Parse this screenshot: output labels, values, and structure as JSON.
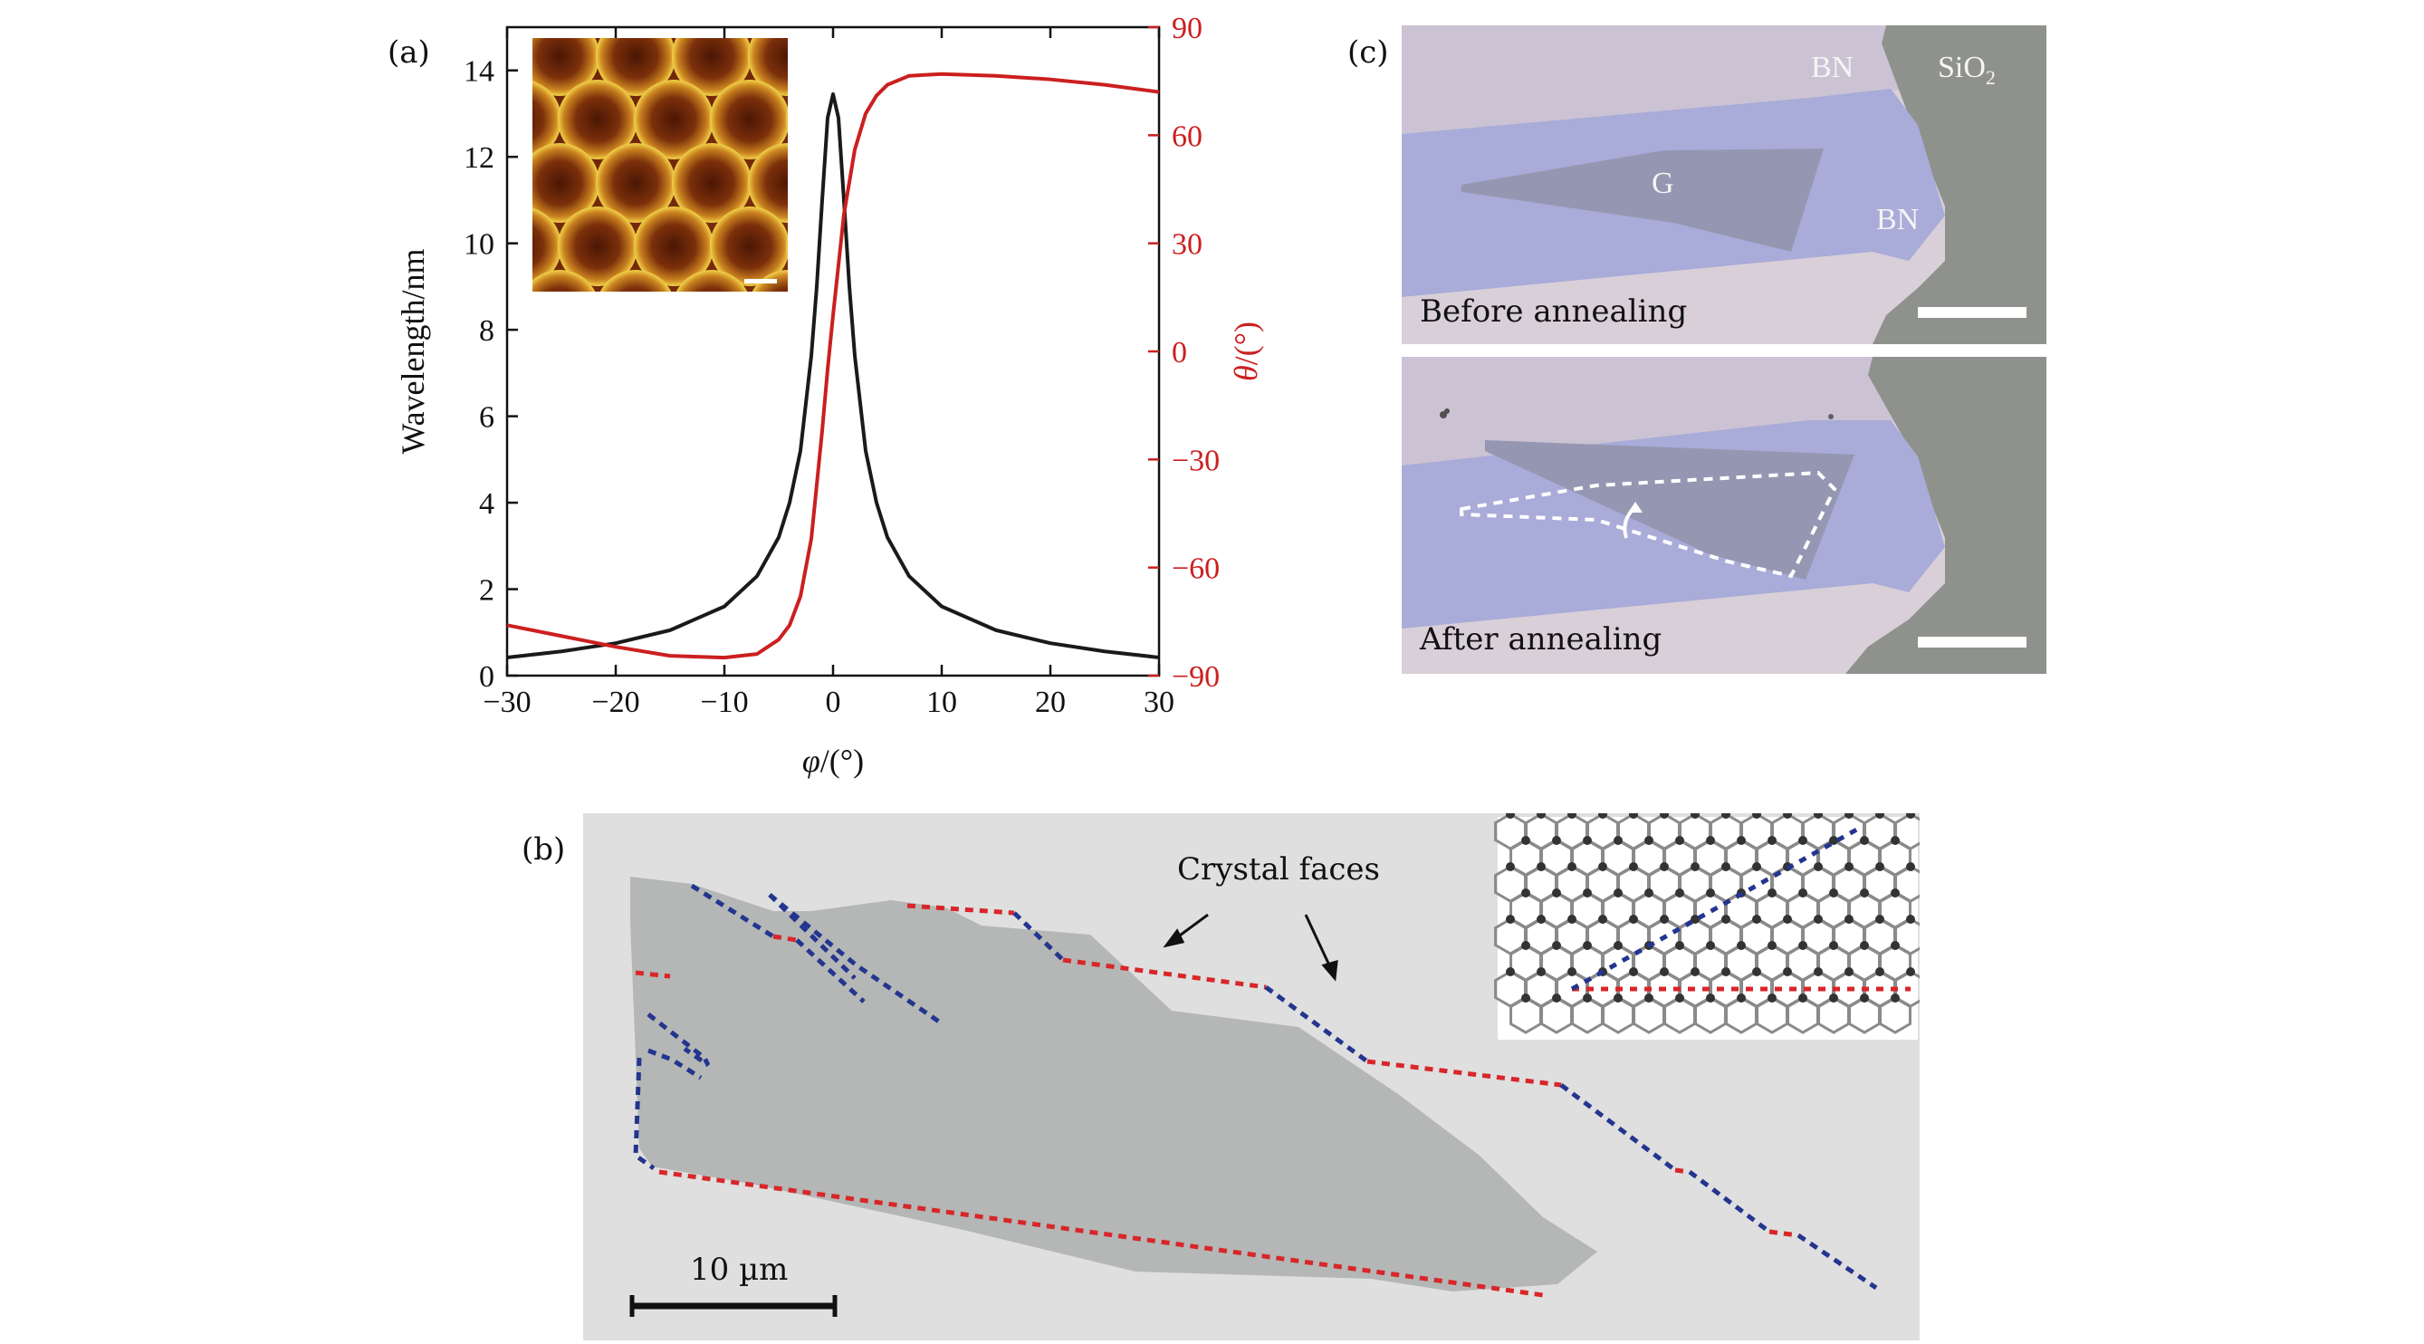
{
  "figure": {
    "panel_a_label": "(a)",
    "panel_b_label": "(b)",
    "panel_c_label": "(c)"
  },
  "chart_data": {
    "type": "line",
    "x": {
      "label_symbol": "φ",
      "label_rest": "/(°)",
      "lim": [
        -30,
        30
      ],
      "ticks": [
        "−30",
        "−20",
        "−10",
        "0",
        "10",
        "20",
        "30"
      ]
    },
    "y_left": {
      "label": "Wavelength/nm",
      "lim": [
        0,
        15
      ],
      "ticks": [
        "0",
        "2",
        "4",
        "6",
        "8",
        "10",
        "12",
        "14"
      ]
    },
    "y_right": {
      "label_symbol": "θ",
      "label_rest": "/(°)",
      "lim": [
        -90,
        90
      ],
      "ticks": [
        "−90",
        "−60",
        "−30",
        "0",
        "30",
        "60",
        "90"
      ]
    },
    "series": [
      {
        "axis": "left",
        "color": "#1a1a1a",
        "x": [
          -30,
          -25,
          -20,
          -15,
          -10,
          -7,
          -5,
          -4,
          -3,
          -2,
          -1.5,
          -1,
          -0.5,
          0,
          0.5,
          1,
          1.5,
          2,
          3,
          4,
          5,
          7,
          10,
          15,
          20,
          25,
          30
        ],
        "y": [
          0.42,
          0.56,
          0.75,
          1.05,
          1.6,
          2.3,
          3.2,
          4.0,
          5.2,
          7.4,
          9.0,
          11.0,
          12.9,
          13.45,
          12.9,
          11.0,
          9.0,
          7.4,
          5.2,
          4.0,
          3.2,
          2.3,
          1.6,
          1.05,
          0.75,
          0.56,
          0.42
        ]
      },
      {
        "axis": "right",
        "color": "#cc1f1f",
        "x": [
          -30,
          -25,
          -20,
          -15,
          -10,
          -7,
          -5,
          -4,
          -3,
          -2,
          -1,
          -0.5,
          0,
          0.5,
          1,
          2,
          3,
          4,
          5,
          7,
          10,
          15,
          20,
          25,
          30
        ],
        "y": [
          -76,
          -79,
          -82,
          -84.5,
          -85,
          -84,
          -80,
          -76,
          -68,
          -52,
          -22,
          -5,
          10,
          24,
          38,
          56,
          66,
          71,
          74,
          76.5,
          77,
          76.5,
          75.5,
          74,
          72
        ]
      }
    ],
    "inset_note": ""
  },
  "panel_c": {
    "top_caption": "Before annealing",
    "bottom_caption": "After annealing",
    "label_bn_top": "BN",
    "label_sio2": "SiO",
    "label_sio2_sub": "2",
    "label_g": "G",
    "label_bn_right": "BN"
  },
  "panel_b": {
    "annotation": "Crystal faces",
    "scale_bar_label": "10 µm",
    "edge_colors": {
      "zigzag": "#d8262a",
      "armchair": "#23358f"
    }
  }
}
